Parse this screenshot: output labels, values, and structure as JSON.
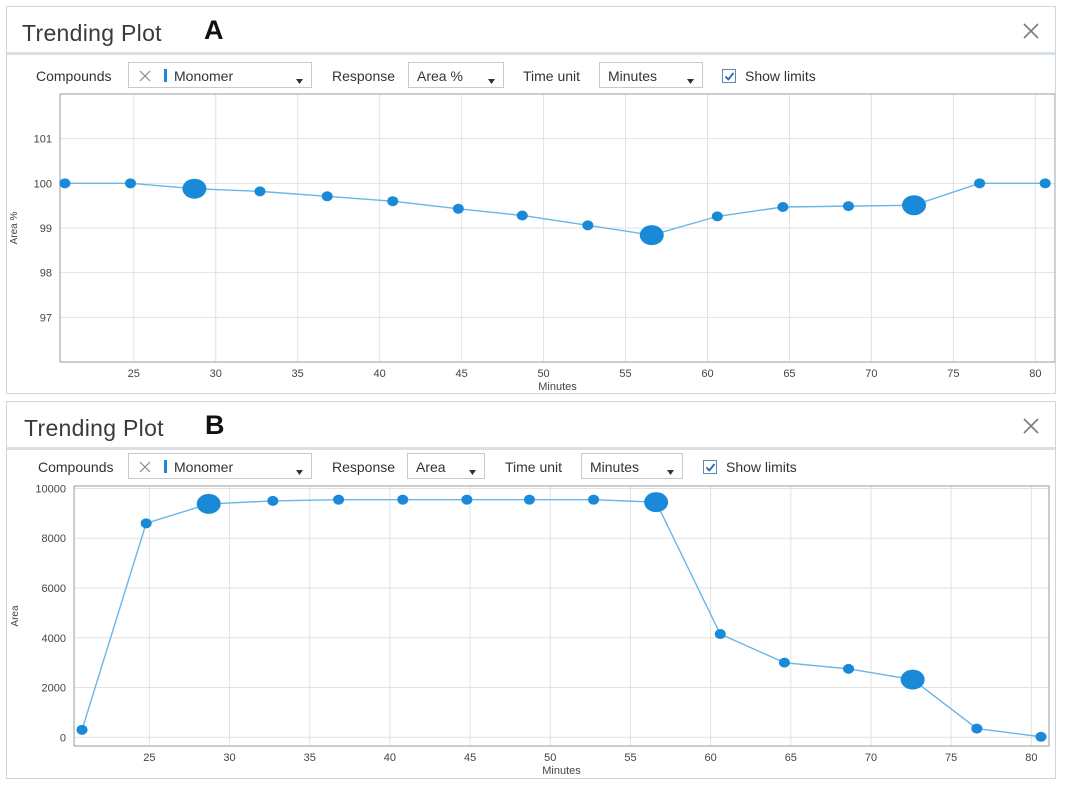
{
  "panels": [
    {
      "title": "Trending Plot",
      "letter": "A",
      "toolbar": {
        "compounds_label": "Compounds",
        "compound_value": "Monomer",
        "response_label": "Response",
        "response_value": "Area %",
        "time_unit_label": "Time unit",
        "time_unit_value": "Minutes",
        "show_limits_label": "Show limits",
        "show_limits_checked": true
      },
      "icons": [
        "close-icon",
        "remove-x-icon",
        "dropdown-caret-icon",
        "checkmark-icon"
      ]
    },
    {
      "title": "Trending Plot",
      "letter": "B",
      "toolbar": {
        "compounds_label": "Compounds",
        "compound_value": "Monomer",
        "response_label": "Response",
        "response_value": "Area",
        "time_unit_label": "Time unit",
        "time_unit_value": "Minutes",
        "show_limits_label": "Show limits",
        "show_limits_checked": true
      },
      "icons": [
        "close-icon",
        "remove-x-icon",
        "dropdown-caret-icon",
        "checkmark-icon"
      ]
    }
  ],
  "chart_data": [
    {
      "type": "line",
      "xlabel": "Minutes",
      "ylabel": "Area %",
      "xlim": [
        20.5,
        81.2
      ],
      "ylim": [
        96.0,
        102.0
      ],
      "xticks": [
        25,
        30,
        35,
        40,
        45,
        50,
        55,
        60,
        65,
        70,
        75,
        80
      ],
      "yticks": [
        97,
        98,
        99,
        100,
        101
      ],
      "grid": true,
      "line_color": "#6cb6e4",
      "marker_color": "#1a8ad8",
      "series": [
        {
          "x": [
            20.8,
            24.8,
            28.7,
            32.7,
            36.8,
            40.8,
            44.8,
            48.7,
            52.7,
            56.6,
            60.6,
            64.6,
            68.6,
            72.6,
            76.6,
            80.6
          ],
          "y": [
            100.0,
            100.0,
            99.88,
            99.82,
            99.71,
            99.6,
            99.43,
            99.28,
            99.06,
            98.84,
            99.26,
            99.47,
            99.49,
            99.51,
            100.0,
            100.0
          ],
          "highlight": [
            false,
            false,
            true,
            false,
            false,
            false,
            false,
            false,
            false,
            true,
            false,
            false,
            false,
            true,
            false,
            false
          ]
        }
      ]
    },
    {
      "type": "line",
      "xlabel": "Minutes",
      "ylabel": "Area",
      "xlim": [
        20.3,
        81.1
      ],
      "ylim": [
        -350,
        10100
      ],
      "xticks": [
        25,
        30,
        35,
        40,
        45,
        50,
        55,
        60,
        65,
        70,
        75,
        80
      ],
      "yticks": [
        0,
        2000,
        4000,
        6000,
        8000,
        10000
      ],
      "grid": true,
      "line_color": "#6cb6e4",
      "marker_color": "#1a8ad8",
      "series": [
        {
          "x": [
            20.8,
            24.8,
            28.7,
            32.7,
            36.8,
            40.8,
            44.8,
            48.7,
            52.7,
            56.6,
            60.6,
            64.6,
            68.6,
            72.6,
            76.6,
            80.6
          ],
          "y": [
            300,
            8600,
            9380,
            9500,
            9550,
            9550,
            9550,
            9550,
            9550,
            9450,
            4150,
            3000,
            2750,
            2320,
            350,
            20
          ],
          "highlight": [
            false,
            false,
            true,
            false,
            false,
            false,
            false,
            false,
            false,
            true,
            false,
            false,
            false,
            true,
            false,
            false
          ]
        }
      ]
    }
  ]
}
